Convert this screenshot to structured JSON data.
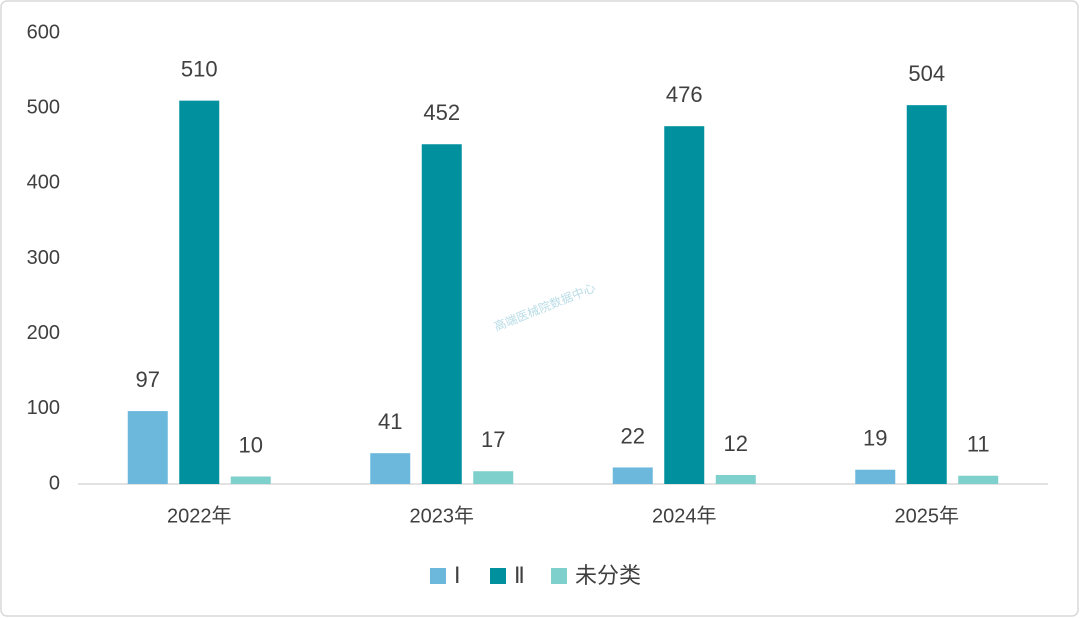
{
  "chart_data": {
    "type": "bar",
    "categories": [
      "2022年",
      "2023年",
      "2024年",
      "2025年"
    ],
    "series": [
      {
        "name": "Ⅰ",
        "color": "#6bb8dc",
        "values": [
          97,
          41,
          22,
          19
        ]
      },
      {
        "name": "Ⅱ",
        "color": "#00909e",
        "values": [
          510,
          452,
          476,
          504
        ]
      },
      {
        "name": "未分类",
        "color": "#7dd0cc",
        "values": [
          10,
          17,
          12,
          11
        ]
      }
    ],
    "ylim": [
      0,
      600
    ],
    "yticks": [
      0,
      100,
      200,
      300,
      400,
      500,
      600
    ],
    "grid": false,
    "legend": "bottom",
    "watermark": "高端医械院数据中心"
  }
}
